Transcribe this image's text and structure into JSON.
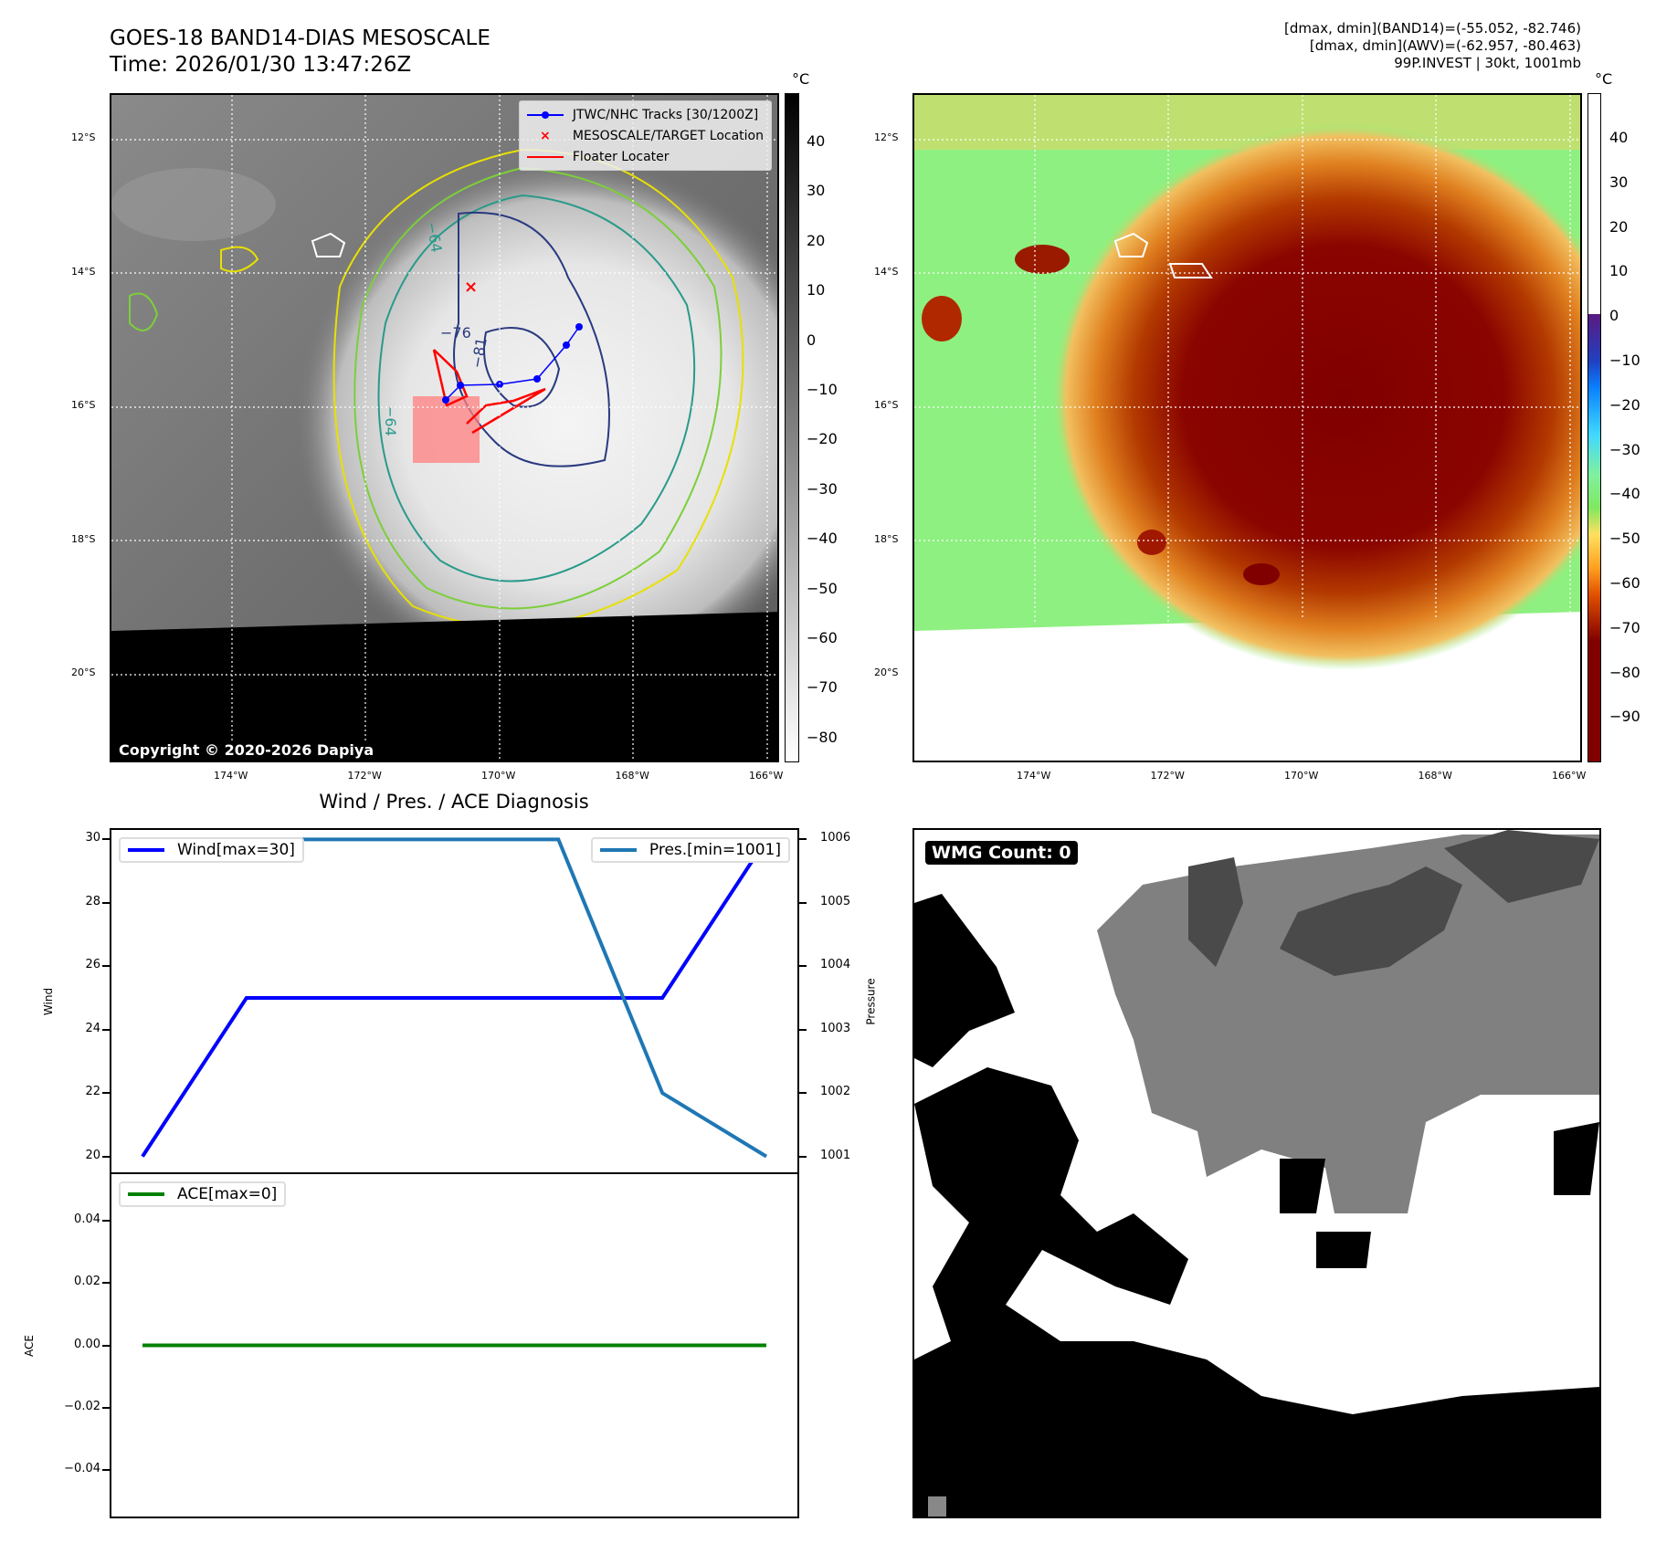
{
  "header": {
    "title_line1": "GOES-18 BAND14-DIAS MESOSCALE",
    "title_line2": "Time: 2026/01/30 13:47:26Z",
    "info_line1": "[dmax, dmin](BAND14)=(-55.052, -82.746)",
    "info_line2": "[dmax, dmin](AWV)=(-62.957, -80.463)",
    "info_line3": "99P.INVEST | 30kt, 1001mb"
  },
  "left_map": {
    "lat_labels": [
      "12°S",
      "14°S",
      "16°S",
      "18°S",
      "20°S"
    ],
    "lon_labels": [
      "174°W",
      "172°W",
      "170°W",
      "168°W",
      "166°W"
    ],
    "colorbar_unit": "°C",
    "colorbar_ticks": [
      "40",
      "30",
      "20",
      "10",
      "0",
      "−10",
      "−20",
      "−30",
      "−40",
      "−50",
      "−60",
      "−70",
      "−80"
    ],
    "legend": {
      "tracks": "JTWC/NHC Tracks [30/1200Z]",
      "target": "MESOSCALE/TARGET Location",
      "floater": "Floater Locater"
    },
    "contour_labels": [
      "−76",
      "−81",
      "−64",
      "−64"
    ],
    "copyright": "Copyright © 2020-2026 Dapiya",
    "colors": {
      "track": "#0000ff",
      "target": "#ff0000",
      "floater": "#ff0000"
    }
  },
  "right_map": {
    "lat_labels": [
      "12°S",
      "14°S",
      "16°S",
      "18°S",
      "20°S"
    ],
    "lon_labels": [
      "174°W",
      "172°W",
      "170°W",
      "168°W",
      "166°W"
    ],
    "colorbar_unit": "°C",
    "colorbar_ticks": [
      "40",
      "30",
      "20",
      "10",
      "0",
      "−10",
      "−20",
      "−30",
      "−40",
      "−50",
      "−60",
      "−70",
      "−80",
      "−90"
    ]
  },
  "wmg": {
    "label": "WMG Count: 0"
  },
  "chart_data": [
    {
      "type": "line",
      "title": "Wind / Pres. / ACE Diagnosis",
      "x": [
        0,
        1,
        2,
        3,
        4,
        5,
        6
      ],
      "ylabel": "Wind",
      "ylabel_right": "Pressure",
      "ylim": [
        19.5,
        30.3
      ],
      "ylim_right": [
        1000.75,
        1006.15
      ],
      "yticks": [
        "20",
        "22",
        "24",
        "26",
        "28",
        "30"
      ],
      "yticks_right": [
        "1001",
        "1002",
        "1003",
        "1004",
        "1005",
        "1006"
      ],
      "series": [
        {
          "name": "Wind[max=30]",
          "axis": "left",
          "color": "#0000ff",
          "values": [
            20,
            25,
            25,
            25,
            25,
            25,
            30
          ]
        },
        {
          "name": "Pres.[min=1001]",
          "axis": "right",
          "color": "#1f77b4",
          "values": [
            1006,
            1006,
            1006,
            1006,
            1006,
            1002,
            1001
          ]
        }
      ]
    },
    {
      "type": "line",
      "x": [
        0,
        1,
        2,
        3,
        4,
        5,
        6
      ],
      "ylabel": "ACE",
      "ylim": [
        -0.055,
        0.055
      ],
      "yticks": [
        "0.04",
        "0.02",
        "0.00",
        "−0.02",
        "−0.04"
      ],
      "series": [
        {
          "name": "ACE[max=0]",
          "color": "#008000",
          "values": [
            0,
            0,
            0,
            0,
            0,
            0,
            0
          ]
        }
      ]
    }
  ]
}
